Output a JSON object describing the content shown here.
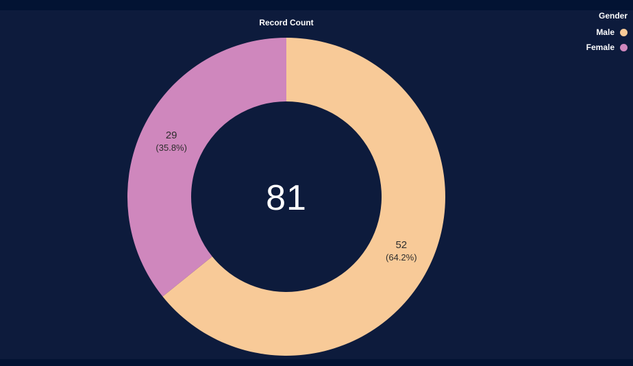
{
  "page": {
    "background_color": "#021333",
    "card_background_color": "#0d1b3c"
  },
  "chart_data": {
    "type": "pie",
    "title": "Record Count",
    "hole_ratio": 0.6,
    "start_angle_deg": 0,
    "direction": "clockwise",
    "categories": [
      "Male",
      "Female"
    ],
    "values": [
      52,
      29
    ],
    "percent_labels": [
      "(64.2%)",
      "(35.8%)"
    ],
    "colors": [
      "#f8ca98",
      "#cf87bd"
    ],
    "total": 81,
    "center_label": "81",
    "label_text_color": "#2d2d2d",
    "legend": {
      "title": "Gender",
      "position": "top-right"
    }
  }
}
